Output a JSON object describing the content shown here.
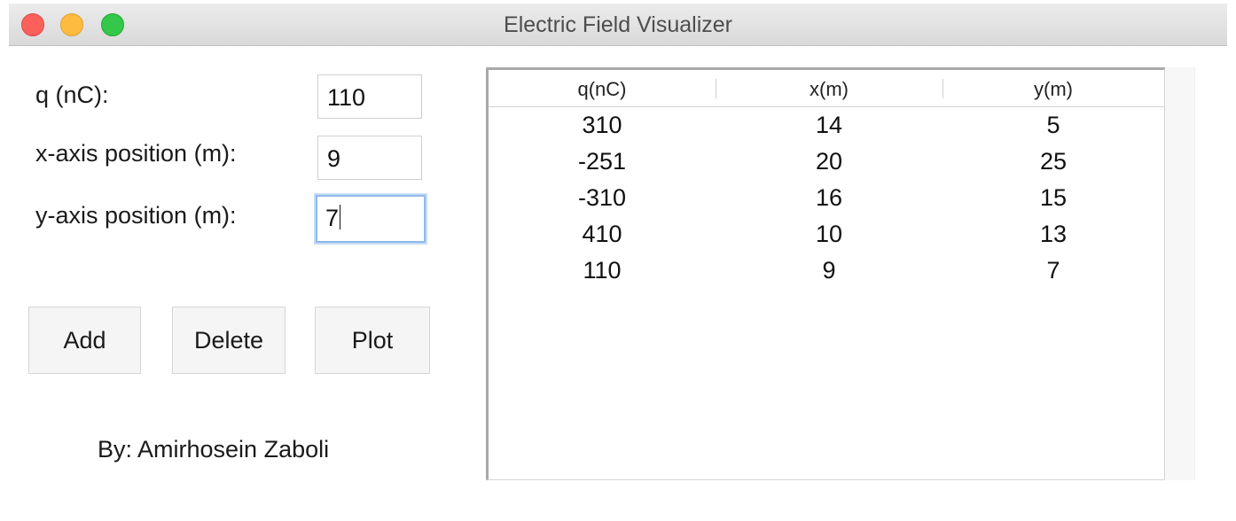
{
  "window": {
    "title": "Electric Field Visualizer"
  },
  "form": {
    "q_label": "q (nC):",
    "q_value": "110",
    "x_label": "x-axis position (m):",
    "x_value": "9",
    "y_label": "y-axis position (m):",
    "y_value": "7"
  },
  "buttons": {
    "add": "Add",
    "delete": "Delete",
    "plot": "Plot"
  },
  "credit": "By: Amirhosein Zaboli",
  "table": {
    "headers": [
      "q(nC)",
      "x(m)",
      "y(m)"
    ],
    "rows": [
      [
        "310",
        "14",
        "5"
      ],
      [
        "-251",
        "20",
        "25"
      ],
      [
        "-310",
        "16",
        "15"
      ],
      [
        "410",
        "10",
        "13"
      ],
      [
        "110",
        "9",
        "7"
      ]
    ]
  }
}
